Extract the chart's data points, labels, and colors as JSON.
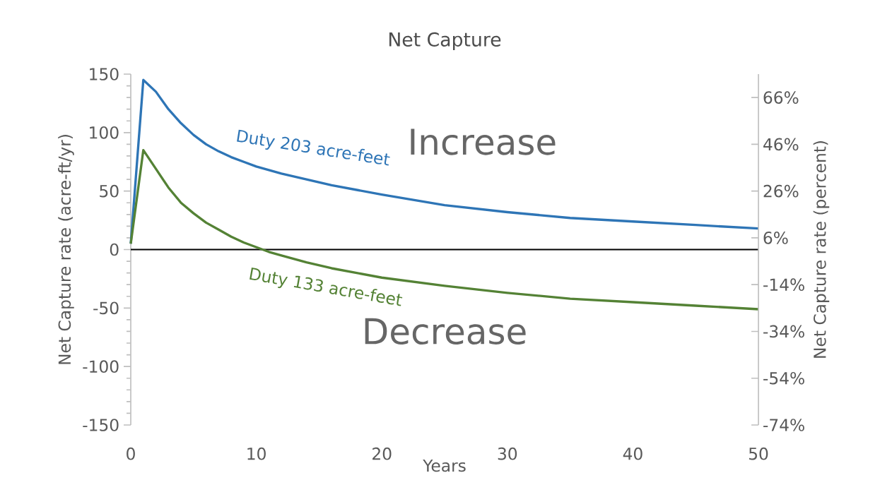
{
  "chart_data": {
    "type": "line",
    "title": "Net Capture",
    "xlabel": "Years",
    "ylabel": "Net Capture rate (acre-ft/yr)",
    "y2label": "Net Capture rate (percent)",
    "annotations": [
      "Increase",
      "Decrease"
    ],
    "xlim": [
      0,
      50
    ],
    "xticks": [
      0,
      10,
      20,
      30,
      40,
      50
    ],
    "ylim": [
      -150,
      150
    ],
    "yticks": [
      -150,
      -100,
      -50,
      0,
      50,
      100,
      150
    ],
    "y2lim": [
      -74,
      76
    ],
    "y2ticks": [
      {
        "value": -74,
        "label": "-74%"
      },
      {
        "value": -54,
        "label": "-54%"
      },
      {
        "value": -34,
        "label": "-34%"
      },
      {
        "value": -14,
        "label": "-14%"
      },
      {
        "value": 6,
        "label": "6%"
      },
      {
        "value": 26,
        "label": "26%"
      },
      {
        "value": 46,
        "label": "46%"
      },
      {
        "value": 66,
        "label": "66%"
      }
    ],
    "grid": false,
    "marker": "none",
    "line_style": "solid",
    "ref_lines": [
      {
        "axis": "y",
        "value": 0,
        "label": null,
        "color": "#000000"
      }
    ],
    "series": [
      {
        "name": "Duty 203 acre-feet",
        "color": "#2e75b6",
        "x": [
          0,
          1,
          2,
          3,
          4,
          5,
          6,
          7,
          8,
          9,
          10,
          12,
          14,
          16,
          18,
          20,
          25,
          30,
          35,
          40,
          45,
          50
        ],
        "values": [
          5,
          145,
          135,
          120,
          108,
          98,
          90,
          84,
          79,
          75,
          71,
          65,
          60,
          55,
          51,
          47,
          38,
          32,
          27,
          24,
          21,
          18
        ]
      },
      {
        "name": "Duty 133 acre-feet",
        "color": "#548235",
        "x": [
          0,
          1,
          2,
          3,
          4,
          5,
          6,
          7,
          8,
          9,
          10,
          11,
          12,
          14,
          16,
          18,
          20,
          25,
          30,
          35,
          40,
          45,
          50
        ],
        "values": [
          5,
          85,
          69,
          53,
          40,
          31,
          23,
          17,
          11,
          6,
          2,
          -2,
          -5,
          -11,
          -16,
          -20,
          -24,
          -31,
          -37,
          -42,
          -45,
          -48,
          -51
        ]
      }
    ]
  }
}
